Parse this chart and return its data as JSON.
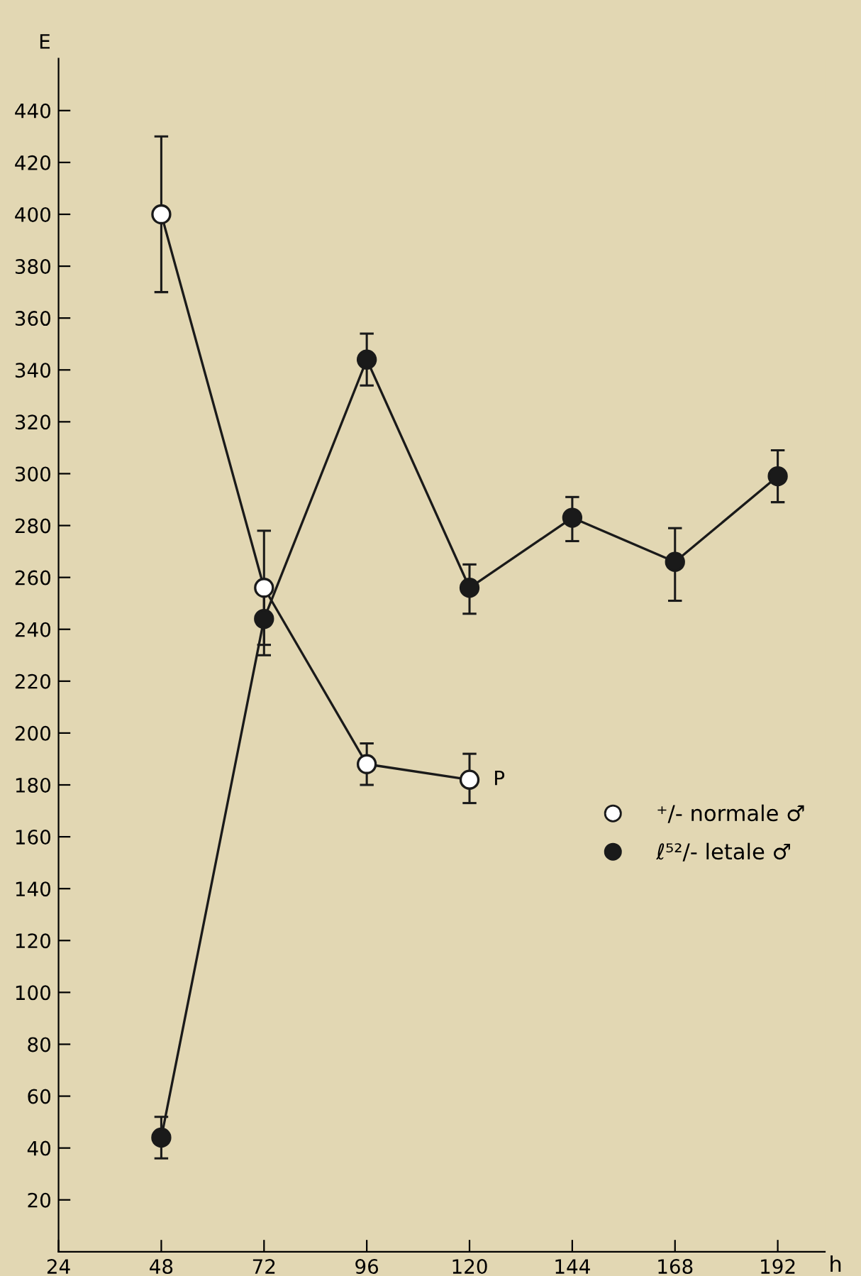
{
  "chart_data": {
    "type": "line",
    "xlabel": "h",
    "ylabel": "E",
    "x": [
      48,
      72,
      96,
      120,
      144,
      168,
      192
    ],
    "series": [
      {
        "name": "⁺/- normale ♂",
        "color": "#1a1a1a",
        "marker": "circle",
        "values": [
          400,
          256,
          188,
          182,
          null,
          null,
          null
        ],
        "errors": [
          [
            370,
            430
          ],
          [
            234,
            278
          ],
          [
            180,
            196
          ],
          [
            173,
            192
          ],
          null,
          null,
          null
        ]
      },
      {
        "name": "ℓ⁵²/- letale ♂",
        "color": "#1a1a1a",
        "marker": "circle",
        "values": [
          44,
          244,
          344,
          256,
          283,
          266,
          299
        ],
        "errors": [
          [
            36,
            52
          ],
          [
            230,
            258
          ],
          [
            334,
            354
          ],
          [
            246,
            265
          ],
          [
            274,
            291
          ],
          [
            251,
            279
          ],
          [
            289,
            309
          ]
        ]
      }
    ],
    "annotations": [
      {
        "text": "P",
        "x": 120,
        "y": 182
      }
    ],
    "xlim": [
      24,
      203
    ],
    "xticks": [
      24,
      48,
      72,
      96,
      120,
      144,
      168,
      192
    ],
    "ylim": [
      0,
      460
    ],
    "yticks": [
      20,
      40,
      60,
      80,
      100,
      120,
      140,
      160,
      180,
      200,
      220,
      240,
      260,
      280,
      300,
      320,
      340,
      360,
      380,
      400,
      420,
      440
    ],
    "grid": false,
    "legend": "right",
    "line_style": "solid"
  }
}
